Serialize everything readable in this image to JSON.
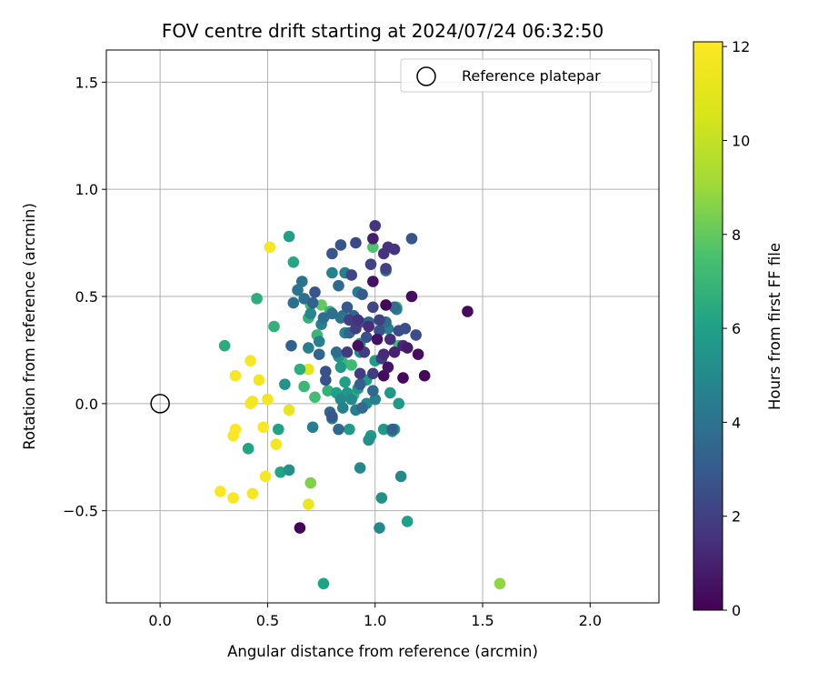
{
  "chart_data": {
    "type": "scatter",
    "title": "FOV centre drift starting at 2024/07/24 06:32:50",
    "xlabel": "Angular distance from reference (arcmin)",
    "ylabel": "Rotation from reference (arcmin)",
    "xlim": [
      -0.25,
      2.32
    ],
    "ylim": [
      -0.93,
      1.65
    ],
    "xticks": [
      0.0,
      0.5,
      1.0,
      1.5,
      2.0
    ],
    "xtick_labels": [
      "0.0",
      "0.5",
      "1.0",
      "1.5",
      "2.0"
    ],
    "yticks": [
      -0.5,
      0.0,
      0.5,
      1.0,
      1.5
    ],
    "ytick_labels": [
      "−0.5",
      "0.0",
      "0.5",
      "1.0",
      "1.5"
    ],
    "grid": true,
    "legend": {
      "position": "top-right",
      "entries": [
        "Reference platepar"
      ]
    },
    "colorbar": {
      "label": "Hours from first FF file",
      "colormap": "viridis",
      "range": [
        0,
        12.1
      ],
      "ticks": [
        0,
        2,
        4,
        6,
        8,
        10,
        12
      ],
      "tick_labels": [
        "0",
        "2",
        "4",
        "6",
        "8",
        "10",
        "12"
      ]
    },
    "reference_point": {
      "name": "Reference platepar",
      "x": 0.0,
      "y": 0.0
    },
    "series": [
      {
        "points": [
          {
            "x": 0.51,
            "y": 0.73,
            "h": 11.8
          },
          {
            "x": 0.46,
            "y": 0.11,
            "h": 11.6
          },
          {
            "x": 0.42,
            "y": 0.2,
            "h": 11.8
          },
          {
            "x": 0.35,
            "y": 0.13,
            "h": 11.8
          },
          {
            "x": 0.42,
            "y": 0.0,
            "h": 11.9
          },
          {
            "x": 0.43,
            "y": 0.01,
            "h": 11.7
          },
          {
            "x": 0.5,
            "y": 0.02,
            "h": 11.6
          },
          {
            "x": 0.48,
            "y": -0.11,
            "h": 11.9
          },
          {
            "x": 0.35,
            "y": -0.12,
            "h": 12.0
          },
          {
            "x": 0.34,
            "y": -0.15,
            "h": 11.9
          },
          {
            "x": 0.54,
            "y": -0.19,
            "h": 11.7
          },
          {
            "x": 0.49,
            "y": -0.34,
            "h": 11.8
          },
          {
            "x": 0.28,
            "y": -0.41,
            "h": 11.9
          },
          {
            "x": 0.34,
            "y": -0.44,
            "h": 12.0
          },
          {
            "x": 0.43,
            "y": -0.42,
            "h": 11.8
          },
          {
            "x": 0.69,
            "y": -0.47,
            "h": 11.3
          },
          {
            "x": 0.6,
            "y": -0.03,
            "h": 11.2
          },
          {
            "x": 0.69,
            "y": 0.16,
            "h": 11.0
          },
          {
            "x": 0.7,
            "y": -0.37,
            "h": 8.5
          },
          {
            "x": 1.58,
            "y": -0.84,
            "h": 8.8
          },
          {
            "x": 0.75,
            "y": 0.46,
            "h": 8.0
          },
          {
            "x": 0.99,
            "y": 0.73,
            "h": 7.6
          },
          {
            "x": 0.7,
            "y": 0.46,
            "h": 7.2
          },
          {
            "x": 0.79,
            "y": 0.43,
            "h": 7.0
          },
          {
            "x": 0.73,
            "y": 0.32,
            "h": 7.0
          },
          {
            "x": 0.67,
            "y": 0.08,
            "h": 7.1
          },
          {
            "x": 0.72,
            "y": 0.03,
            "h": 7.3
          },
          {
            "x": 0.85,
            "y": 0.19,
            "h": 7.0
          },
          {
            "x": 0.89,
            "y": 0.18,
            "h": 7.2
          },
          {
            "x": 1.1,
            "y": 0.45,
            "h": 7.4
          },
          {
            "x": 1.11,
            "y": 0.27,
            "h": 7.1
          },
          {
            "x": 0.9,
            "y": 0.04,
            "h": 7.0
          },
          {
            "x": 0.78,
            "y": 0.06,
            "h": 6.8
          },
          {
            "x": 0.69,
            "y": 0.4,
            "h": 6.8
          },
          {
            "x": 0.65,
            "y": 0.16,
            "h": 6.6
          },
          {
            "x": 0.53,
            "y": 0.36,
            "h": 6.8
          },
          {
            "x": 0.45,
            "y": 0.49,
            "h": 6.6
          },
          {
            "x": 0.3,
            "y": 0.27,
            "h": 6.5
          },
          {
            "x": 0.62,
            "y": 0.66,
            "h": 6.3
          },
          {
            "x": 0.6,
            "y": 0.78,
            "h": 6.0
          },
          {
            "x": 0.56,
            "y": -0.32,
            "h": 6.2
          },
          {
            "x": 0.41,
            "y": -0.21,
            "h": 6.2
          },
          {
            "x": 0.55,
            "y": -0.12,
            "h": 6.1
          },
          {
            "x": 0.76,
            "y": -0.84,
            "h": 6.1
          },
          {
            "x": 1.15,
            "y": -0.55,
            "h": 6.0
          },
          {
            "x": 0.82,
            "y": 0.05,
            "h": 6.0
          },
          {
            "x": 0.86,
            "y": 0.1,
            "h": 6.0
          },
          {
            "x": 0.88,
            "y": -0.12,
            "h": 5.8
          },
          {
            "x": 0.98,
            "y": -0.15,
            "h": 5.8
          },
          {
            "x": 1.0,
            "y": 0.2,
            "h": 5.8
          },
          {
            "x": 1.04,
            "y": -0.12,
            "h": 5.8
          },
          {
            "x": 1.09,
            "y": -0.12,
            "h": 5.8
          },
          {
            "x": 1.07,
            "y": 0.05,
            "h": 5.7
          },
          {
            "x": 1.11,
            "y": 0.0,
            "h": 5.8
          },
          {
            "x": 0.96,
            "y": 0.11,
            "h": 5.8
          },
          {
            "x": 0.92,
            "y": 0.07,
            "h": 5.6
          },
          {
            "x": 0.87,
            "y": 0.05,
            "h": 5.6
          },
          {
            "x": 0.84,
            "y": 0.17,
            "h": 5.7
          },
          {
            "x": 0.83,
            "y": 0.22,
            "h": 5.6
          },
          {
            "x": 0.58,
            "y": 0.09,
            "h": 5.5
          },
          {
            "x": 0.6,
            "y": -0.31,
            "h": 5.3
          },
          {
            "x": 1.03,
            "y": -0.44,
            "h": 5.3
          },
          {
            "x": 0.97,
            "y": -0.17,
            "h": 5.3
          },
          {
            "x": 0.93,
            "y": -0.3,
            "h": 5.0
          },
          {
            "x": 1.02,
            "y": -0.58,
            "h": 5.0
          },
          {
            "x": 1.12,
            "y": -0.34,
            "h": 5.0
          },
          {
            "x": 1.08,
            "y": -0.13,
            "h": 5.1
          },
          {
            "x": 0.84,
            "y": 0.02,
            "h": 5.0
          },
          {
            "x": 0.89,
            "y": 0.02,
            "h": 5.0
          },
          {
            "x": 0.96,
            "y": 0.0,
            "h": 5.0
          },
          {
            "x": 0.93,
            "y": 0.24,
            "h": 5.0
          },
          {
            "x": 0.93,
            "y": 0.28,
            "h": 5.0
          },
          {
            "x": 0.86,
            "y": 0.33,
            "h": 4.8
          },
          {
            "x": 0.86,
            "y": 0.61,
            "h": 4.6
          },
          {
            "x": 0.92,
            "y": 0.52,
            "h": 4.5
          },
          {
            "x": 0.8,
            "y": 0.61,
            "h": 4.6
          },
          {
            "x": 0.75,
            "y": 0.37,
            "h": 4.6
          },
          {
            "x": 0.74,
            "y": 0.29,
            "h": 4.6
          },
          {
            "x": 0.7,
            "y": 0.42,
            "h": 4.8
          },
          {
            "x": 0.69,
            "y": 0.26,
            "h": 4.5
          },
          {
            "x": 0.71,
            "y": -0.11,
            "h": 4.5
          },
          {
            "x": 0.8,
            "y": -0.07,
            "h": 4.6
          },
          {
            "x": 0.85,
            "y": -0.02,
            "h": 4.6
          },
          {
            "x": 0.91,
            "y": -0.03,
            "h": 4.6
          },
          {
            "x": 1.0,
            "y": 0.02,
            "h": 4.6
          },
          {
            "x": 1.06,
            "y": 0.35,
            "h": 4.6
          },
          {
            "x": 1.1,
            "y": 0.44,
            "h": 4.6
          },
          {
            "x": 1.05,
            "y": 0.62,
            "h": 4.2
          },
          {
            "x": 0.85,
            "y": 0.41,
            "h": 4.0
          },
          {
            "x": 0.84,
            "y": 0.4,
            "h": 4.0
          },
          {
            "x": 0.66,
            "y": 0.57,
            "h": 4.0
          },
          {
            "x": 0.64,
            "y": 0.53,
            "h": 4.0
          },
          {
            "x": 0.62,
            "y": 0.47,
            "h": 3.9
          },
          {
            "x": 0.67,
            "y": 0.49,
            "h": 3.9
          },
          {
            "x": 0.8,
            "y": 0.42,
            "h": 3.8
          },
          {
            "x": 0.76,
            "y": 0.4,
            "h": 3.8
          },
          {
            "x": 0.82,
            "y": 0.24,
            "h": 3.7
          },
          {
            "x": 0.79,
            "y": -0.04,
            "h": 3.6
          },
          {
            "x": 0.83,
            "y": -0.12,
            "h": 3.6
          },
          {
            "x": 0.94,
            "y": -0.02,
            "h": 3.6
          },
          {
            "x": 0.99,
            "y": 0.06,
            "h": 3.6
          },
          {
            "x": 1.05,
            "y": 0.38,
            "h": 3.7
          },
          {
            "x": 1.09,
            "y": 0.45,
            "h": 3.7
          },
          {
            "x": 0.83,
            "y": 0.55,
            "h": 3.6
          },
          {
            "x": 0.88,
            "y": 0.33,
            "h": 3.4
          },
          {
            "x": 0.9,
            "y": 0.41,
            "h": 3.4
          },
          {
            "x": 0.97,
            "y": 0.38,
            "h": 3.5
          },
          {
            "x": 0.74,
            "y": 0.23,
            "h": 3.4
          },
          {
            "x": 0.71,
            "y": 0.47,
            "h": 3.2
          },
          {
            "x": 0.61,
            "y": 0.27,
            "h": 3.2
          },
          {
            "x": 1.08,
            "y": -0.12,
            "h": 3.2
          },
          {
            "x": 0.93,
            "y": 0.09,
            "h": 3.1
          },
          {
            "x": 0.94,
            "y": 0.51,
            "h": 3.0
          },
          {
            "x": 0.87,
            "y": 0.45,
            "h": 2.9
          },
          {
            "x": 0.84,
            "y": 0.74,
            "h": 2.8
          },
          {
            "x": 0.8,
            "y": 0.7,
            "h": 2.8
          },
          {
            "x": 1.17,
            "y": 0.77,
            "h": 2.8
          },
          {
            "x": 0.72,
            "y": 0.52,
            "h": 2.8
          },
          {
            "x": 0.77,
            "y": 0.15,
            "h": 2.7
          },
          {
            "x": 0.77,
            "y": 0.11,
            "h": 2.7
          },
          {
            "x": 0.8,
            "y": -0.06,
            "h": 2.8
          },
          {
            "x": 0.93,
            "y": 0.38,
            "h": 2.8
          },
          {
            "x": 1.02,
            "y": 0.34,
            "h": 2.7
          },
          {
            "x": 0.96,
            "y": 0.31,
            "h": 2.7
          },
          {
            "x": 1.11,
            "y": 0.34,
            "h": 2.5
          },
          {
            "x": 1.14,
            "y": 0.35,
            "h": 2.5
          },
          {
            "x": 1.19,
            "y": 0.32,
            "h": 2.4
          },
          {
            "x": 0.91,
            "y": 0.75,
            "h": 2.3
          },
          {
            "x": 0.98,
            "y": 0.65,
            "h": 2.1
          },
          {
            "x": 0.89,
            "y": 0.6,
            "h": 2.2
          },
          {
            "x": 0.99,
            "y": 0.45,
            "h": 2.2
          },
          {
            "x": 1.05,
            "y": 0.63,
            "h": 2.0
          },
          {
            "x": 1.02,
            "y": 0.39,
            "h": 2.0
          },
          {
            "x": 0.88,
            "y": 0.39,
            "h": 2.0
          },
          {
            "x": 0.91,
            "y": 0.35,
            "h": 1.9
          },
          {
            "x": 0.95,
            "y": 0.24,
            "h": 1.9
          },
          {
            "x": 1.03,
            "y": 0.21,
            "h": 1.9
          },
          {
            "x": 0.99,
            "y": 0.14,
            "h": 1.9
          },
          {
            "x": 0.93,
            "y": 0.14,
            "h": 1.9
          },
          {
            "x": 0.87,
            "y": 0.24,
            "h": 1.8
          },
          {
            "x": 1.0,
            "y": 0.83,
            "h": 1.6
          },
          {
            "x": 1.09,
            "y": 0.72,
            "h": 1.6
          },
          {
            "x": 1.06,
            "y": 0.73,
            "h": 1.5
          },
          {
            "x": 1.04,
            "y": 0.7,
            "h": 1.5
          },
          {
            "x": 0.92,
            "y": 0.39,
            "h": 1.5
          },
          {
            "x": 0.97,
            "y": 0.36,
            "h": 1.4
          },
          {
            "x": 1.07,
            "y": 0.3,
            "h": 1.4
          },
          {
            "x": 1.04,
            "y": 0.23,
            "h": 1.3
          },
          {
            "x": 1.13,
            "y": 0.27,
            "h": 1.2
          },
          {
            "x": 0.99,
            "y": 0.77,
            "h": 0.9
          },
          {
            "x": 1.09,
            "y": 0.24,
            "h": 1.0
          },
          {
            "x": 1.15,
            "y": 0.26,
            "h": 0.8
          },
          {
            "x": 1.17,
            "y": 0.5,
            "h": 0.4
          },
          {
            "x": 1.2,
            "y": 0.23,
            "h": 0.4
          },
          {
            "x": 1.23,
            "y": 0.13,
            "h": 0.2
          },
          {
            "x": 1.13,
            "y": 0.12,
            "h": 0.2
          },
          {
            "x": 1.04,
            "y": 0.13,
            "h": 0.3
          },
          {
            "x": 0.99,
            "y": 0.57,
            "h": 0.5
          },
          {
            "x": 1.43,
            "y": 0.43,
            "h": 0.3
          },
          {
            "x": 0.65,
            "y": -0.58,
            "h": 0.1
          },
          {
            "x": 1.05,
            "y": 0.46,
            "h": 0.1
          },
          {
            "x": 0.92,
            "y": 0.27,
            "h": 0.4
          },
          {
            "x": 1.01,
            "y": 0.3,
            "h": 0.5
          },
          {
            "x": 1.06,
            "y": 0.17,
            "h": 0.6
          }
        ]
      }
    ]
  }
}
